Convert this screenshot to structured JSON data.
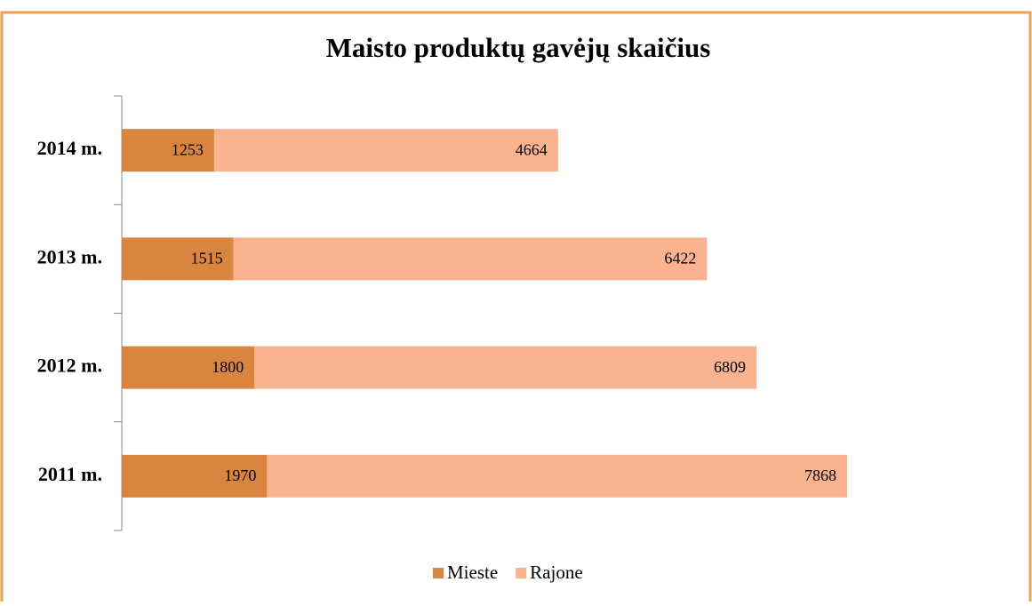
{
  "chart_data": {
    "type": "stacked-bar-horizontal",
    "title": "Maisto produktų  gavėjų skaičius",
    "categories": [
      "2014 m.",
      "2013 m.",
      "2012 m.",
      "2011 m."
    ],
    "series": [
      {
        "name": "Mieste",
        "color": "#d9843f",
        "values": [
          1253,
          1515,
          1800,
          1970
        ]
      },
      {
        "name": "Rajone",
        "color": "#f9b48f",
        "values": [
          4664,
          6422,
          6809,
          7868
        ]
      }
    ],
    "legend": "bottom"
  }
}
